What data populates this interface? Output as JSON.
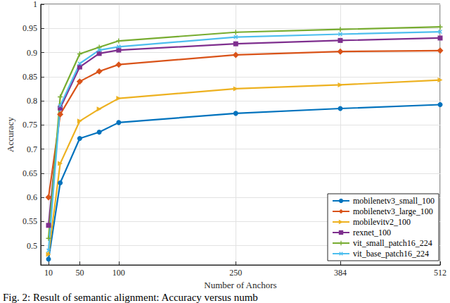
{
  "chart_data": {
    "type": "line",
    "caption": "Fig. 2: Result of semantic alignment: Accuracy versus numb",
    "x_label": "Number of Anchors",
    "y_label": "Accuracy",
    "x": [
      10,
      25,
      50,
      75,
      100,
      250,
      384,
      512
    ],
    "xlim": [
      0,
      512
    ],
    "xticks": [
      10,
      50,
      100,
      250,
      384,
      512
    ],
    "ylim": [
      0.46,
      1
    ],
    "yticks": [
      0.5,
      0.55,
      0.6,
      0.65,
      0.7,
      0.75,
      0.8,
      0.85,
      0.9,
      0.95,
      1
    ],
    "grid": true,
    "legend": "bottom-right",
    "series": [
      {
        "name": "mobilenetv3_small_100",
        "color": "#0072BD",
        "marker": "circle",
        "values": [
          0.472,
          0.63,
          0.722,
          0.735,
          0.755,
          0.774,
          0.784,
          0.792
        ]
      },
      {
        "name": "mobilenetv3_large_100",
        "color": "#D95319",
        "marker": "diamond",
        "values": [
          0.6,
          0.772,
          0.84,
          0.861,
          0.875,
          0.895,
          0.902,
          0.904
        ]
      },
      {
        "name": "mobilevitv2_100",
        "color": "#EDB120",
        "marker": "triangle",
        "values": [
          0.482,
          0.67,
          0.758,
          0.783,
          0.805,
          0.825,
          0.833,
          0.843
        ]
      },
      {
        "name": "rexnet_100",
        "color": "#7E2F8E",
        "marker": "square",
        "values": [
          0.542,
          0.785,
          0.87,
          0.898,
          0.905,
          0.918,
          0.925,
          0.93
        ]
      },
      {
        "name": "vit_small_patch16_224",
        "color": "#77AC30",
        "marker": "plus",
        "values": [
          0.515,
          0.808,
          0.897,
          0.911,
          0.924,
          0.942,
          0.948,
          0.953
        ]
      },
      {
        "name": "vit_base_patch16_224",
        "color": "#4DBEEE",
        "marker": "x",
        "values": [
          0.49,
          0.79,
          0.877,
          0.905,
          0.912,
          0.932,
          0.938,
          0.943
        ]
      }
    ]
  }
}
